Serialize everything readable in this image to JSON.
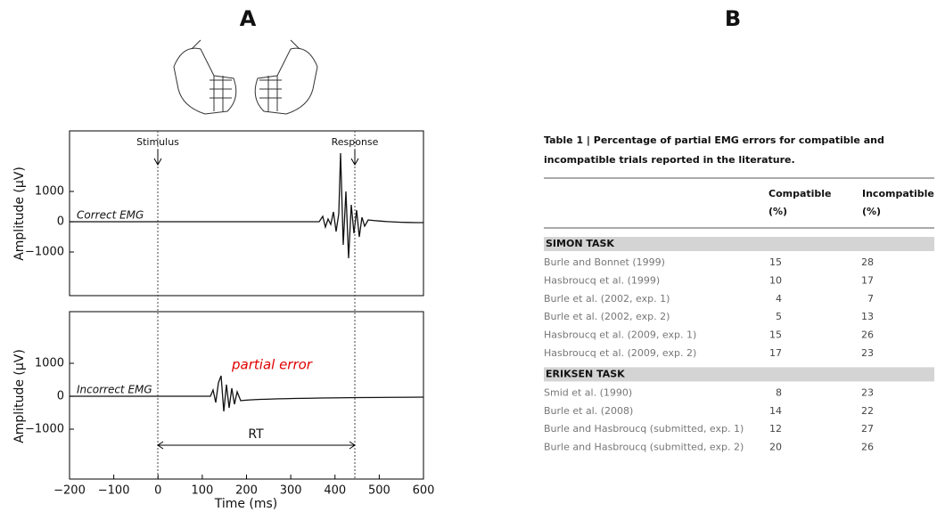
{
  "panel_a": {
    "label": "A",
    "plots": [
      {
        "y_label": "Amplitude (μV)",
        "trace_label": "Correct EMG",
        "yticks": [
          "1000",
          "0",
          "−1000"
        ]
      },
      {
        "y_label": "Amplitude (μV)",
        "trace_label": "Incorrect EMG",
        "yticks": [
          "1000",
          "0",
          "−1000"
        ]
      }
    ],
    "stimulus": "Stimulus",
    "response": "Response",
    "partial_error": "partial error",
    "rt": "RT",
    "xticks": [
      "−200",
      "−100",
      "0",
      "100",
      "200",
      "300",
      "400",
      "500",
      "600"
    ],
    "x_label": "Time (ms)"
  },
  "panel_b": {
    "label": "B",
    "caption": [
      "Table 1 | Percentage of partial EMG errors for compatible and",
      "incompatible trials reported in the literature."
    ],
    "header": [
      [
        "Compatible",
        "(%)"
      ],
      [
        "Incompatible",
        "(%)"
      ]
    ],
    "sections": [
      {
        "title": "SIMON TASK",
        "rows": [
          [
            "Burle and Bonnet (1999)",
            15,
            28
          ],
          [
            "Hasbroucq et al. (1999)",
            10,
            17
          ],
          [
            "Burle et al. (2002, exp. 1)",
            4,
            7
          ],
          [
            "Burle et al. (2002, exp. 2)",
            5,
            13
          ],
          [
            "Hasbroucq et al. (2009, exp. 1)",
            15,
            26
          ],
          [
            "Hasbroucq et al. (2009, exp. 2)",
            17,
            23
          ]
        ]
      },
      {
        "title": "ERIKSEN TASK",
        "rows": [
          [
            "Smid et al. (1990)",
            8,
            23
          ],
          [
            "Burle et al. (2008)",
            14,
            22
          ],
          [
            "Burle and Hasbroucq (submitted, exp. 1)",
            12,
            27
          ],
          [
            "Burle and Hasbroucq (submitted, exp. 2)",
            20,
            26
          ]
        ]
      }
    ]
  }
}
